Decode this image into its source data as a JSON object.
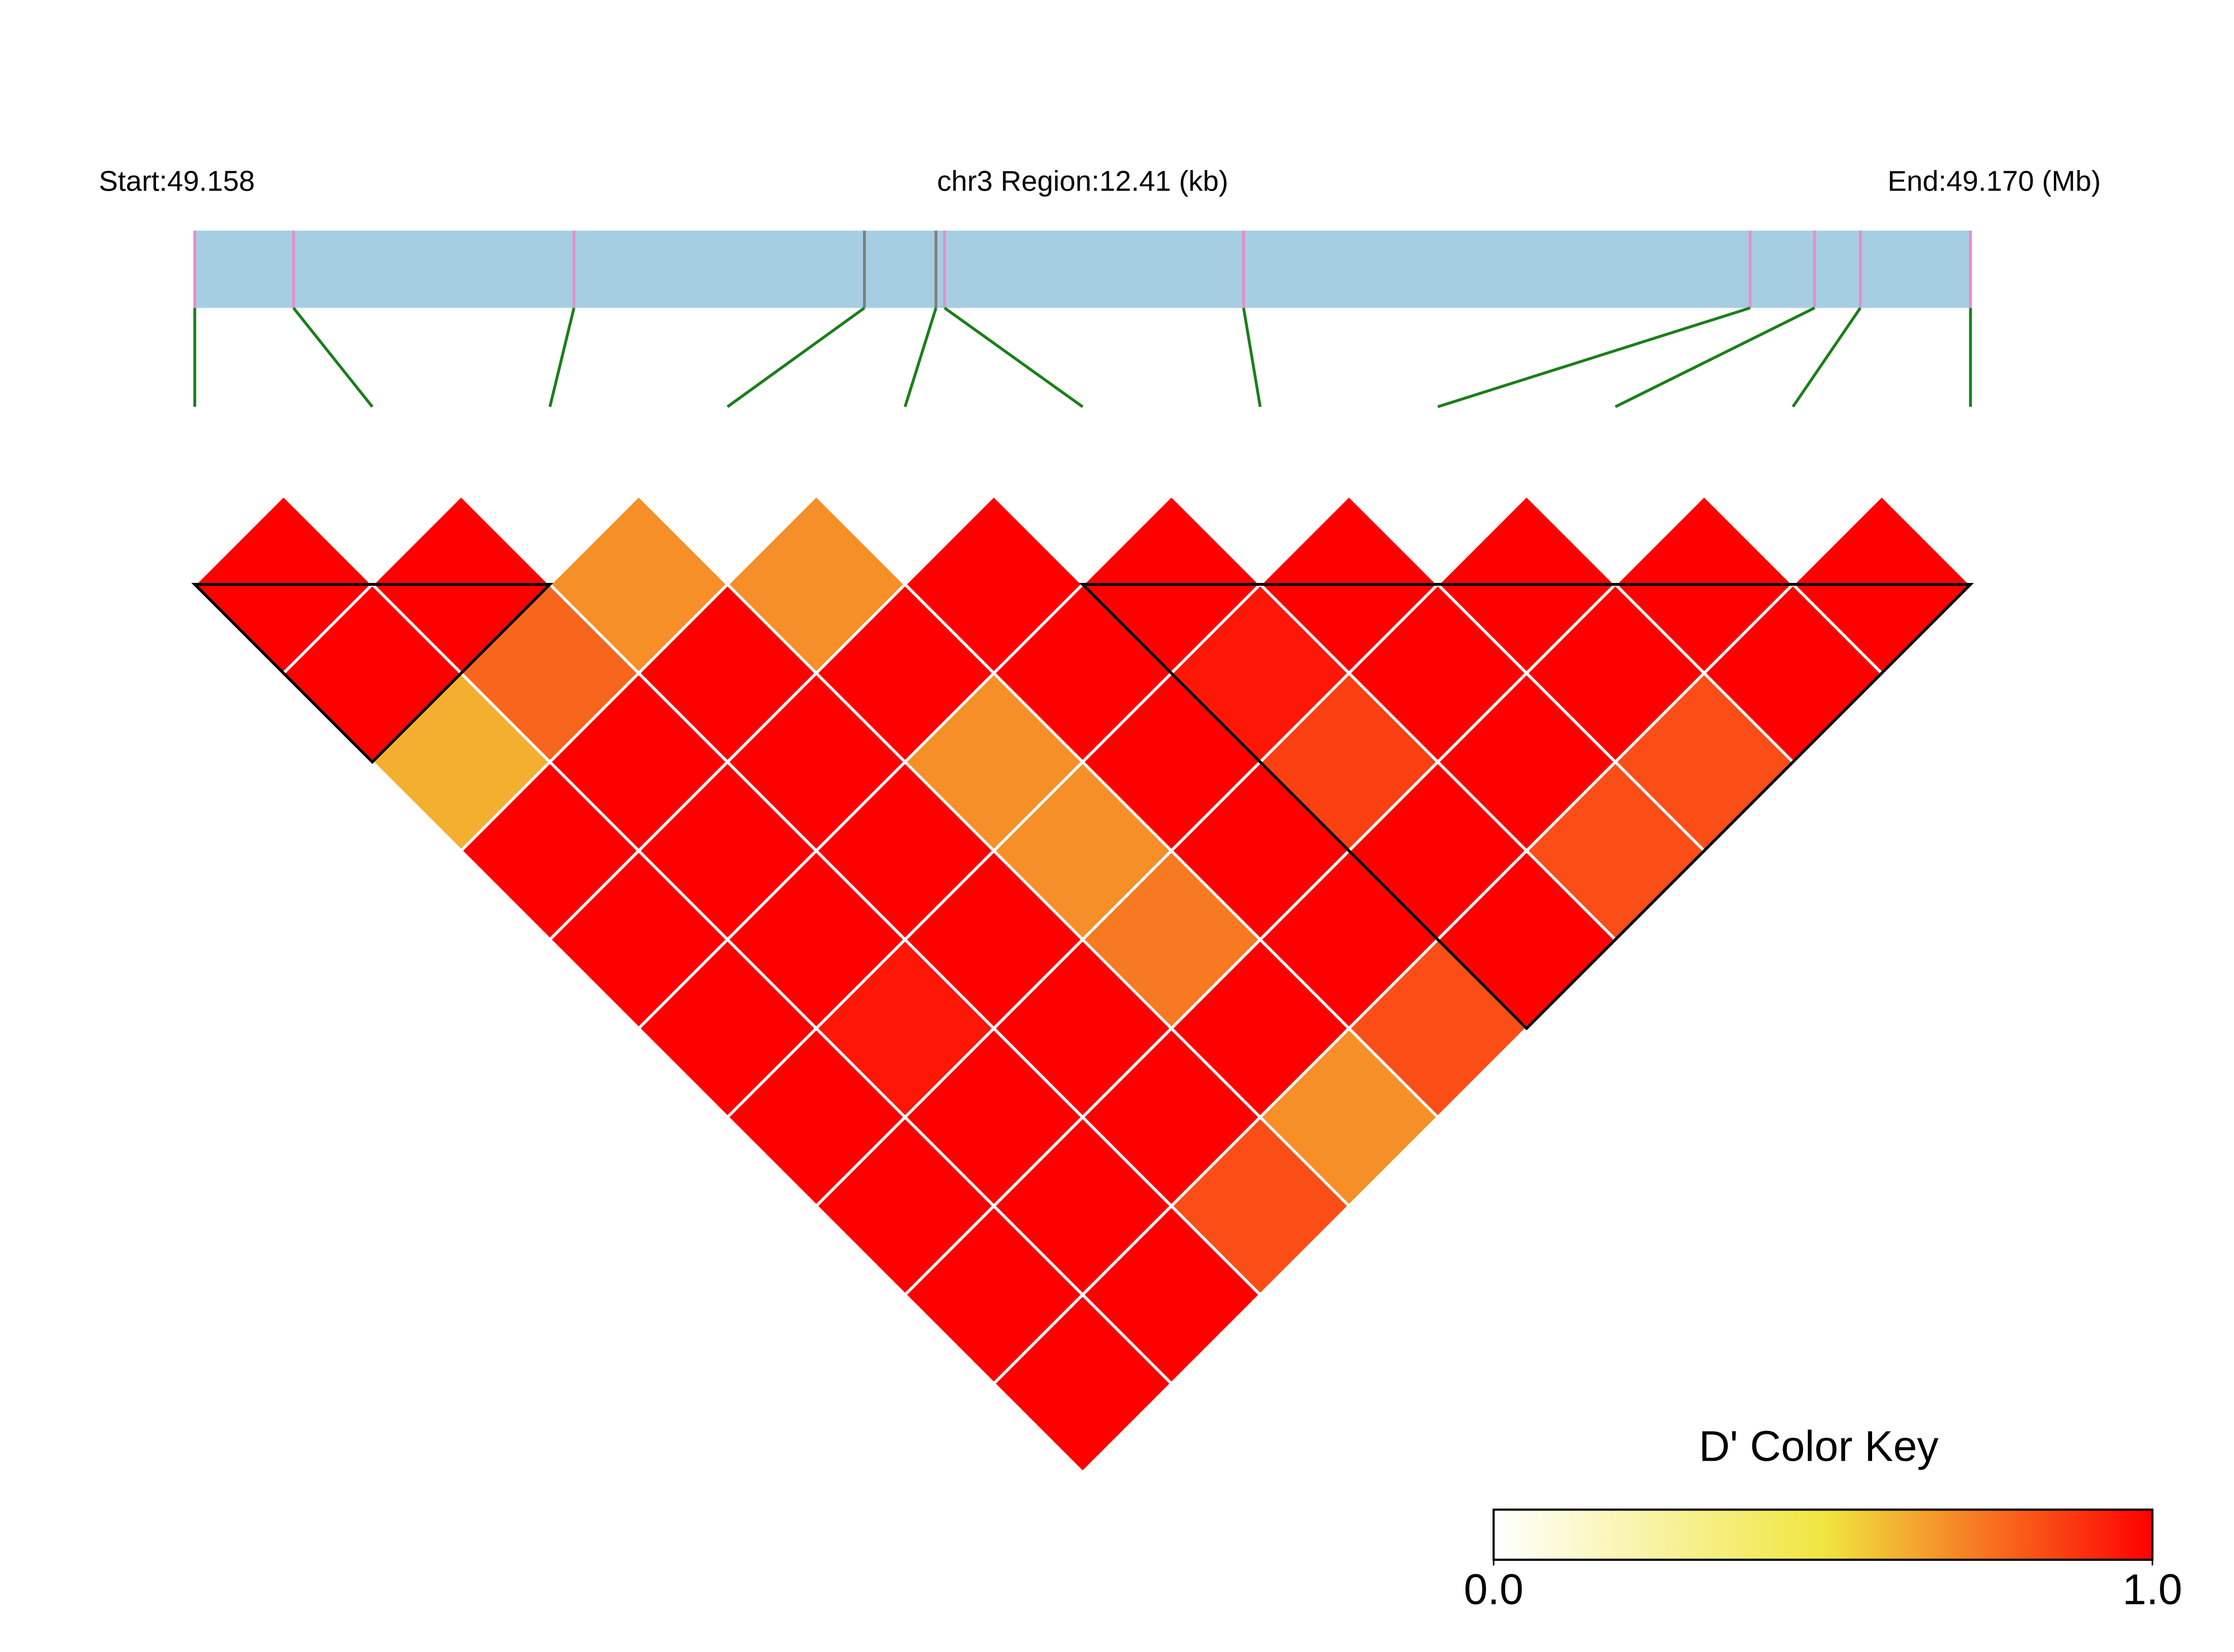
{
  "chart_data": {
    "type": "ld-heatmap",
    "start_label": "Start:49.158",
    "region_label": "chr3 Region:12.41 (kb)",
    "end_label": "End:49.170 (Mb)",
    "xlim": [
      0,
      12.41
    ],
    "snp_offsets_kb": [
      0,
      0.69,
      2.65,
      4.68,
      5.18,
      5.24,
      7.33,
      10.87,
      11.32,
      11.64,
      12.41
    ],
    "gene_color": "#a6cee3",
    "tick_color": "#e58fc9",
    "highlight_tick_color": "#808080",
    "highlighted_snps": [
      3,
      4
    ],
    "connector_color": "#1a7f1a",
    "dprime": [
      [
        1,
        1,
        0.62,
        1,
        1,
        1,
        1,
        1,
        1,
        1
      ],
      [
        1,
        0.78,
        1,
        1,
        1,
        0.95,
        1,
        1,
        1
      ],
      [
        0.69,
        1,
        1,
        1,
        1,
        1,
        1,
        0.83
      ],
      [
        0.69,
        1,
        0.69,
        0.69,
        0.735,
        1,
        0.69
      ],
      [
        1,
        1,
        1,
        1,
        1,
        0.83
      ],
      [
        1,
        0.95,
        0.86,
        1,
        1
      ],
      [
        1,
        1,
        1,
        0.83
      ],
      [
        1,
        1,
        0.83
      ],
      [
        1,
        1
      ],
      [
        1
      ]
    ],
    "blocks": [
      [
        0,
        2
      ],
      [
        5,
        10
      ]
    ],
    "color_key_title": "D' Color Key",
    "color_scale": [
      "#ffffff",
      "#f0e640",
      "#ff0000"
    ],
    "key_ticks": [
      {
        "value": 0,
        "label": "0.0"
      },
      {
        "value": 1,
        "label": "1.0"
      }
    ]
  }
}
